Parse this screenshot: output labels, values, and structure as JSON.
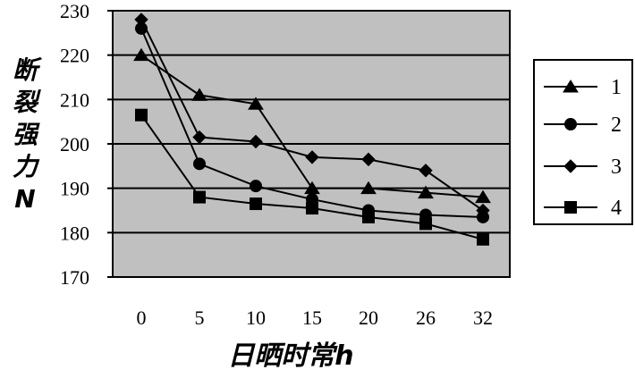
{
  "chart_data": {
    "type": "line",
    "categories": [
      "0",
      "5",
      "10",
      "15",
      "20",
      "26",
      "32"
    ],
    "xlabel": "日晒时常h",
    "ylabel": "断裂强力N",
    "ylim": [
      170,
      230
    ],
    "yticks": [
      "170",
      "180",
      "190",
      "200",
      "210",
      "220",
      "230"
    ],
    "grid": "horizontal",
    "legend_position": "right",
    "plot_background": "#c0c0c0",
    "line_color": "#000000",
    "series": [
      {
        "name": "1",
        "marker": "triangle",
        "values": [
          220,
          211,
          209,
          190,
          190,
          189,
          188
        ]
      },
      {
        "name": "2",
        "marker": "circle",
        "values": [
          226,
          195.5,
          190.5,
          187.5,
          185,
          184,
          183.5
        ]
      },
      {
        "name": "3",
        "marker": "diamond",
        "values": [
          228,
          201.5,
          200.5,
          197,
          196.5,
          194,
          185
        ]
      },
      {
        "name": "4",
        "marker": "square",
        "values": [
          206.5,
          188,
          186.5,
          185.5,
          183.5,
          182,
          178.5
        ]
      }
    ]
  }
}
